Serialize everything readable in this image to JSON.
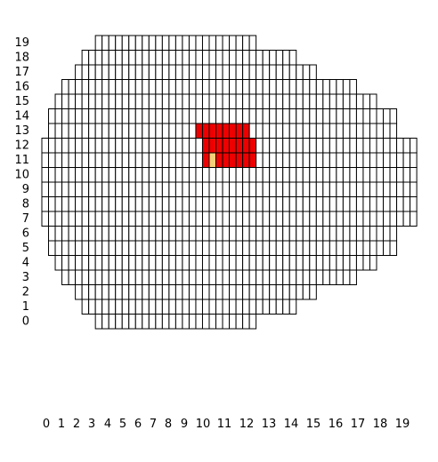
{
  "grid": {
    "x_labels": [
      "0",
      "1",
      "2",
      "3",
      "4",
      "5",
      "6",
      "7",
      "8",
      "9",
      "10",
      "11",
      "12",
      "13",
      "14",
      "15",
      "16",
      "17",
      "18",
      "19"
    ],
    "y_labels": [
      "19",
      "18",
      "17",
      "16",
      "15",
      "14",
      "13",
      "12",
      "11",
      "10",
      "9",
      "8",
      "7",
      "6",
      "5",
      "4",
      "3",
      "2",
      "1",
      "0"
    ],
    "rows": [
      {
        "cols": 24,
        "start": 8,
        "cells": ""
      },
      {
        "cols": 32,
        "start": 6,
        "cells": ""
      },
      {
        "cols": 36,
        "start": 5,
        "cells": ""
      },
      {
        "cols": 44,
        "start": 3,
        "cells": ""
      },
      {
        "cols": 48,
        "start": 2,
        "cells": ""
      },
      {
        "cols": 52,
        "start": 1,
        "cells": "................................................................"
      },
      {
        "cols": 52,
        "start": 1,
        "cells": ".......................RRRRRRRR..............................."
      },
      {
        "cols": 56,
        "start": 0,
        "cells": "........................RRRRRRRR................................."
      },
      {
        "cols": 56,
        "start": 0,
        "cells": "........................RYRRRRRR................................."
      },
      {
        "cols": 56,
        "start": 0,
        "cells": ""
      },
      {
        "cols": 56,
        "start": 0,
        "cells": ""
      },
      {
        "cols": 56,
        "start": 0,
        "cells": ""
      },
      {
        "cols": 56,
        "start": 0,
        "cells": ""
      },
      {
        "cols": 52,
        "start": 1,
        "cells": ""
      },
      {
        "cols": 52,
        "start": 1,
        "cells": ""
      },
      {
        "cols": 48,
        "start": 2,
        "cells": ""
      },
      {
        "cols": 44,
        "start": 3,
        "cells": ""
      },
      {
        "cols": 36,
        "start": 5,
        "cells": ""
      },
      {
        "cols": 32,
        "start": 6,
        "cells": ""
      },
      {
        "cols": 24,
        "start": 8,
        "cells": ""
      }
    ]
  },
  "colors": {
    "cell_fill": "#ffffff",
    "cell_stroke": "#000000",
    "highlight": "#ee0000",
    "marker": "#f5d07a"
  }
}
